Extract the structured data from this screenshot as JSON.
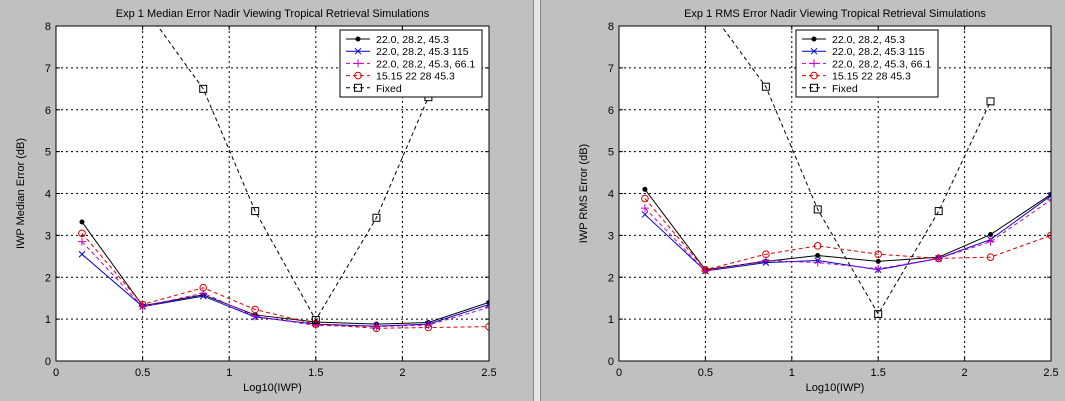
{
  "colors": {
    "figure_background": "#c0c0c0",
    "axes_background": "#ffffff"
  },
  "chart_data": [
    {
      "type": "line",
      "title": "Exp 1 Median Error Nadir Viewing Tropical Retrieval Simulations",
      "xlabel": "Log10(IWP)",
      "ylabel": "IWP Median Error (dB)",
      "xlim": [
        0,
        2.5
      ],
      "ylim": [
        0,
        8
      ],
      "xticks": [
        0,
        0.5,
        1,
        1.5,
        2,
        2.5
      ],
      "yticks": [
        0,
        1,
        2,
        3,
        4,
        5,
        6,
        7,
        8
      ],
      "grid": true,
      "legend_position": "top-right",
      "series": [
        {
          "name": "22.0, 28.2, 45.3",
          "color": "#000000",
          "line": "solid",
          "marker": "dot",
          "x": [
            0.15,
            0.5,
            0.85,
            1.15,
            1.5,
            1.85,
            2.15,
            2.5
          ],
          "y": [
            3.32,
            1.32,
            1.58,
            1.1,
            0.93,
            0.88,
            0.92,
            1.4
          ]
        },
        {
          "name": "22.0, 28.2, 45.3 115",
          "color": "#0000cc",
          "line": "solid",
          "marker": "x",
          "x": [
            0.15,
            0.5,
            0.85,
            1.15,
            1.5,
            1.85,
            2.15,
            2.5
          ],
          "y": [
            2.55,
            1.3,
            1.55,
            1.05,
            0.88,
            0.83,
            0.88,
            1.35
          ]
        },
        {
          "name": "22.0, 28.2, 45.3, 66.1",
          "color": "#cc00cc",
          "line": "dashed",
          "marker": "plus",
          "x": [
            0.15,
            0.5,
            0.85,
            1.15,
            1.5,
            1.85,
            2.15,
            2.5
          ],
          "y": [
            2.85,
            1.3,
            1.62,
            1.07,
            0.85,
            0.82,
            0.86,
            1.28
          ]
        },
        {
          "name": "15.15 22 28 45.3",
          "color": "#dd0000",
          "line": "dashed",
          "marker": "circle",
          "x": [
            0.15,
            0.5,
            0.85,
            1.15,
            1.5,
            1.85,
            2.15,
            2.5
          ],
          "y": [
            3.05,
            1.35,
            1.75,
            1.23,
            0.88,
            0.78,
            0.8,
            0.82
          ]
        },
        {
          "name": "Fixed",
          "color": "#000000",
          "line": "dashed",
          "marker": "square",
          "x": [
            0.15,
            0.85,
            1.15,
            1.5,
            1.85,
            2.15
          ],
          "y": [
            10.5,
            6.5,
            3.58,
            0.98,
            3.42,
            6.3
          ]
        }
      ]
    },
    {
      "type": "line",
      "title": "Exp 1 RMS Error Nadir Viewing Tropical Retrieval Simulations",
      "xlabel": "Log10(IWP)",
      "ylabel": "IWP RMS Error (dB)",
      "xlim": [
        0,
        2.5
      ],
      "ylim": [
        0,
        8
      ],
      "xticks": [
        0,
        0.5,
        1,
        1.5,
        2,
        2.5
      ],
      "yticks": [
        0,
        1,
        2,
        3,
        4,
        5,
        6,
        7,
        8
      ],
      "grid": true,
      "legend_position": "top-right",
      "series": [
        {
          "name": "22.0, 28.2, 45.3",
          "color": "#000000",
          "line": "solid",
          "marker": "dot",
          "x": [
            0.15,
            0.5,
            0.85,
            1.15,
            1.5,
            1.85,
            2.15,
            2.5
          ],
          "y": [
            4.1,
            2.18,
            2.38,
            2.52,
            2.38,
            2.48,
            3.02,
            3.98
          ]
        },
        {
          "name": "22.0, 28.2, 45.3 115",
          "color": "#0000cc",
          "line": "solid",
          "marker": "x",
          "x": [
            0.15,
            0.5,
            0.85,
            1.15,
            1.5,
            1.85,
            2.15,
            2.5
          ],
          "y": [
            3.5,
            2.15,
            2.35,
            2.4,
            2.18,
            2.45,
            2.9,
            3.95
          ]
        },
        {
          "name": "22.0, 28.2, 45.3, 66.1",
          "color": "#cc00cc",
          "line": "dashed",
          "marker": "plus",
          "x": [
            0.15,
            0.5,
            0.85,
            1.15,
            1.5,
            1.85,
            2.15,
            2.5
          ],
          "y": [
            3.65,
            2.15,
            2.4,
            2.35,
            2.2,
            2.45,
            2.85,
            3.85
          ]
        },
        {
          "name": "15.15 22 28 45.3",
          "color": "#dd0000",
          "line": "dashed",
          "marker": "circle",
          "x": [
            0.15,
            0.5,
            0.85,
            1.15,
            1.5,
            1.85,
            2.15,
            2.5
          ],
          "y": [
            3.88,
            2.18,
            2.55,
            2.75,
            2.55,
            2.45,
            2.48,
            3.0
          ]
        },
        {
          "name": "Fixed",
          "color": "#000000",
          "line": "dashed",
          "marker": "square",
          "x": [
            0.15,
            0.85,
            1.15,
            1.5,
            1.85,
            2.15
          ],
          "y": [
            10.5,
            6.55,
            3.62,
            1.12,
            3.58,
            6.2
          ]
        }
      ]
    }
  ]
}
